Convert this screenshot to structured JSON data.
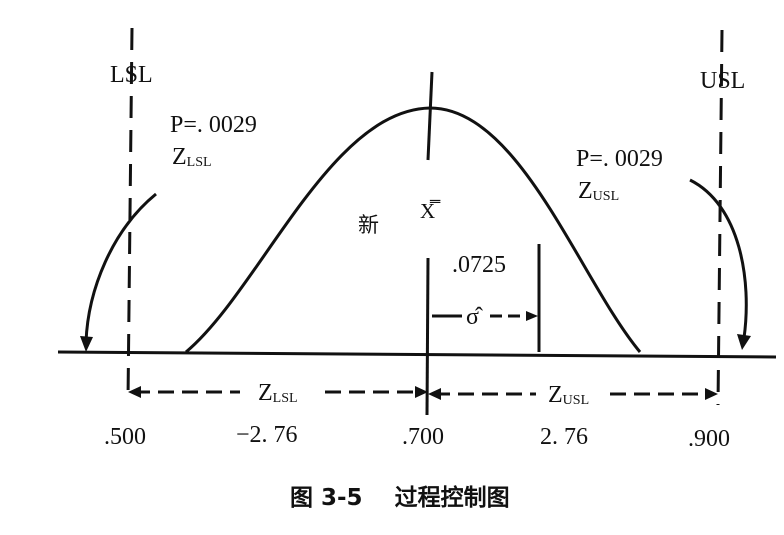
{
  "figure": {
    "limits": {
      "lsl_label": "LSL",
      "usl_label": "USL",
      "lsl_value": ".500",
      "usl_value": ".900"
    },
    "mean": {
      "symbol": "X̿",
      "value": ".700"
    },
    "sigma": {
      "symbol": "σ̂",
      "value": ".0725"
    },
    "tails": {
      "left_p": "P=. 0029",
      "left_z": "Z",
      "left_z_sub": "LSL",
      "right_p": "P=. 0029",
      "right_z": "Z",
      "right_z_sub": "USL"
    },
    "zlabels": {
      "z_lsl": "Z",
      "z_lsl_sub": "LSL",
      "z_usl": "Z",
      "z_usl_sub": "USL",
      "z_lsl_value": "−2. 76",
      "z_usl_value": "2. 76"
    },
    "curve_label": "新",
    "caption": "图 3-5    过程控制图",
    "colors": {
      "ink": "#111111",
      "background": "#ffffff"
    }
  }
}
